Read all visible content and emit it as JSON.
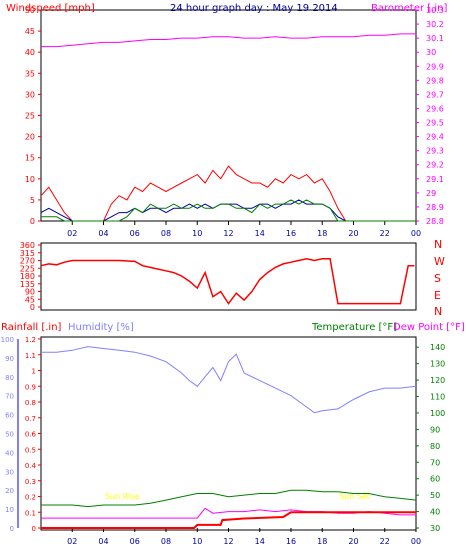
{
  "colors": {
    "background": "#ffffff",
    "frame": "#000000",
    "wind": "#ff0000",
    "gust_avg": "#0000a0",
    "wind_green": "#008000",
    "barometer": "#ff00ff",
    "direction": "#ff0000",
    "rain": "#ff0000",
    "humidity": "#8080ff",
    "temperature": "#008000",
    "dewpoint": "#ff00ff",
    "sun_label": "#ffff00",
    "title": "#0000a0"
  },
  "top_panel": {
    "title": "24 hour graph day : May 19 2014",
    "left_label": "Windspeed [mph]",
    "right_label": "Barometer [.in]"
  },
  "direction_panel": {
    "right_labels": [
      "N",
      "W",
      "S",
      "E",
      "N"
    ]
  },
  "bottom_panel": {
    "rain_label": "Rainfall [.in]",
    "humidity_label": "Humidity [%]",
    "temp_label": "Temperature [°F]",
    "dew_label": "Dew Point [°F]",
    "sunrise_label": "Sun Rise",
    "sunset_label": "Sun Set"
  },
  "chart_data": [
    {
      "type": "line",
      "title": "24 hour graph day : May 19 2014",
      "x_ticks": [
        "02",
        "04",
        "06",
        "08",
        "10",
        "12",
        "14",
        "16",
        "18",
        "20",
        "22",
        "00"
      ],
      "x_range_hours": [
        0,
        24
      ],
      "left_axis": {
        "label": "Windspeed [mph]",
        "range": [
          0,
          50
        ],
        "ticks": [
          0,
          5,
          10,
          15,
          20,
          25,
          30,
          35,
          40,
          45,
          50
        ]
      },
      "right_axis": {
        "label": "Barometer [.in]",
        "range": [
          28.8,
          30.3
        ],
        "ticks": [
          "28.8",
          "28.9",
          "29",
          "29.1",
          "29.2",
          "29.3",
          "29.4",
          "29.5",
          "29.6",
          "29.7",
          "29.8",
          "29.9",
          "30",
          "30.1",
          "30.2",
          "30.3"
        ]
      },
      "series": [
        {
          "axis": "right",
          "hours": [
            0,
            1,
            2,
            3,
            4,
            5,
            6,
            7,
            8,
            9,
            10,
            11,
            12,
            13,
            14,
            15,
            16,
            17,
            18,
            19,
            20,
            21,
            22,
            23,
            24
          ],
          "values": [
            30.04,
            30.04,
            30.05,
            30.06,
            30.07,
            30.07,
            30.08,
            30.09,
            30.09,
            30.1,
            30.1,
            30.11,
            30.11,
            30.1,
            30.1,
            30.11,
            30.1,
            30.1,
            30.11,
            30.11,
            30.11,
            30.12,
            30.12,
            30.13,
            30.13
          ]
        },
        {
          "axis": "left",
          "hours": [
            0,
            0.5,
            1,
            1.5,
            2,
            2.5,
            3,
            3.5,
            4,
            4.5,
            5,
            5.5,
            6,
            6.5,
            7,
            7.5,
            8,
            8.5,
            9,
            9.5,
            10,
            10.5,
            11,
            11.5,
            12,
            12.5,
            13,
            13.5,
            14,
            14.5,
            15,
            15.5,
            16,
            16.5,
            17,
            17.5,
            18,
            18.5,
            19,
            19.5,
            20,
            21,
            22,
            23,
            24
          ],
          "values": [
            6,
            8,
            5,
            2,
            0,
            0,
            0,
            0,
            0,
            4,
            6,
            5,
            8,
            7,
            9,
            8,
            7,
            8,
            9,
            10,
            11,
            9,
            12,
            10,
            13,
            11,
            10,
            9,
            9,
            8,
            10,
            9,
            11,
            10,
            11,
            9,
            10,
            7,
            3,
            0,
            0,
            0,
            0,
            0,
            0
          ]
        },
        {
          "axis": "left",
          "hours": [
            0,
            0.5,
            1,
            1.5,
            2,
            2.5,
            3,
            4,
            4.5,
            5,
            5.5,
            6,
            6.5,
            7,
            7.5,
            8,
            8.5,
            9,
            9.5,
            10,
            10.5,
            11,
            11.5,
            12,
            12.5,
            13,
            13.5,
            14,
            14.5,
            15,
            15.5,
            16,
            16.5,
            17,
            17.5,
            18,
            18.5,
            19,
            19.5,
            20,
            22,
            24
          ],
          "values": [
            2,
            3,
            2,
            1,
            0,
            0,
            0,
            0,
            1,
            2,
            2,
            3,
            2,
            3,
            3,
            2,
            3,
            3,
            4,
            3,
            4,
            3,
            4,
            4,
            4,
            3,
            3,
            4,
            4,
            3,
            4,
            4,
            5,
            4,
            4,
            4,
            3,
            1,
            0,
            0,
            0,
            0
          ]
        },
        {
          "axis": "left",
          "hours": [
            0,
            0.5,
            1,
            1.5,
            2,
            3,
            4,
            5,
            5.5,
            6,
            6.5,
            7,
            7.5,
            8,
            8.5,
            9,
            9.5,
            10,
            10.5,
            11,
            11.5,
            12,
            12.5,
            13,
            13.5,
            14,
            14.5,
            15,
            15.5,
            16,
            16.5,
            17,
            17.5,
            18,
            18.5,
            19,
            20,
            22,
            24
          ],
          "values": [
            1,
            1,
            1,
            0,
            0,
            0,
            0,
            0,
            1,
            3,
            2,
            4,
            3,
            3,
            4,
            3,
            3,
            4,
            3,
            3,
            4,
            4,
            3,
            3,
            2,
            4,
            3,
            4,
            4,
            5,
            4,
            5,
            4,
            4,
            3,
            0,
            0,
            0,
            0
          ]
        }
      ]
    },
    {
      "type": "line",
      "left_axis": {
        "range": [
          0,
          360
        ],
        "ticks": [
          0,
          45,
          90,
          135,
          180,
          225,
          270,
          315,
          360
        ]
      },
      "right_labels": [
        "N",
        "W",
        "S",
        "E",
        "N"
      ],
      "series": [
        {
          "hours": [
            0,
            0.5,
            1,
            1.5,
            2,
            3,
            4,
            5,
            6,
            6.5,
            7,
            7.5,
            8,
            8.5,
            9,
            9.5,
            10,
            10.5,
            11,
            11.5,
            12,
            12.5,
            13,
            13.5,
            14,
            14.5,
            15,
            15.5,
            16,
            16.5,
            17,
            17.5,
            18,
            18.5,
            19,
            19.5,
            20,
            21,
            22,
            23,
            23.5,
            23.9
          ],
          "values": [
            240,
            250,
            245,
            260,
            270,
            270,
            270,
            270,
            265,
            240,
            230,
            220,
            210,
            200,
            180,
            150,
            110,
            200,
            60,
            90,
            20,
            80,
            40,
            90,
            160,
            200,
            230,
            250,
            260,
            270,
            280,
            270,
            280,
            280,
            20,
            20,
            20,
            20,
            20,
            20,
            240,
            240
          ]
        }
      ]
    },
    {
      "type": "line",
      "x_ticks": [
        "02",
        "04",
        "06",
        "08",
        "10",
        "12",
        "14",
        "16",
        "18",
        "20",
        "22",
        "00"
      ],
      "x_range_hours": [
        0,
        24
      ],
      "rain_axis": {
        "label": "Rainfall [.in]",
        "range": [
          0,
          1.2
        ],
        "ticks": [
          "0",
          "0.1",
          "0.2",
          "0.3",
          "0.4",
          "0.5",
          "0.6",
          "0.7",
          "0.8",
          "0.9",
          "1",
          "1.1",
          "1.2"
        ]
      },
      "humidity_axis": {
        "label": "Humidity [%]",
        "range": [
          0,
          100
        ],
        "ticks": [
          0,
          10,
          20,
          30,
          40,
          50,
          60,
          70,
          80,
          90,
          100
        ]
      },
      "temp_axis": {
        "label": "Temperature [°F]",
        "range": [
          30,
          145
        ],
        "ticks": [
          30,
          40,
          50,
          60,
          70,
          80,
          90,
          100,
          110,
          120,
          130,
          140
        ]
      },
      "annotations": [
        "Sun Rise",
        "Sun Set"
      ],
      "series": [
        {
          "axis": "humidity",
          "hours": [
            0,
            1,
            2,
            3,
            4,
            5,
            6,
            7,
            8,
            9,
            9.5,
            10,
            10.5,
            11,
            11.5,
            12,
            12.5,
            13,
            14,
            15,
            16,
            17,
            17.5,
            18,
            19,
            20,
            21,
            22,
            23,
            24
          ],
          "values": [
            93,
            93,
            94,
            96,
            95,
            94,
            93,
            91,
            88,
            82,
            78,
            75,
            80,
            85,
            78,
            88,
            92,
            82,
            78,
            74,
            70,
            64,
            61,
            62,
            63,
            68,
            72,
            74,
            74,
            75
          ]
        },
        {
          "axis": "temp",
          "hours": [
            0,
            1,
            2,
            3,
            4,
            5,
            6,
            7,
            8,
            9,
            10,
            11,
            12,
            13,
            14,
            15,
            16,
            17,
            18,
            19,
            20,
            21,
            22,
            23,
            24
          ],
          "values": [
            44,
            44,
            44,
            43,
            44,
            44,
            44,
            45,
            47,
            49,
            51,
            51,
            49,
            50,
            51,
            51,
            53,
            53,
            52,
            52,
            51,
            51,
            49,
            48,
            47
          ]
        },
        {
          "axis": "temp",
          "hours": [
            0,
            1,
            2,
            3,
            4,
            5,
            6,
            7,
            8,
            9,
            10,
            10.5,
            11,
            12,
            13,
            14,
            15,
            16,
            17,
            18,
            19,
            20,
            21,
            22,
            23,
            24
          ],
          "values": [
            36,
            36,
            36,
            36,
            36,
            36,
            36,
            36,
            36,
            36,
            36,
            42,
            39,
            40,
            40,
            41,
            40,
            41,
            40,
            40,
            39,
            39,
            40,
            39,
            38,
            38
          ]
        },
        {
          "axis": "rain",
          "hours": [
            0,
            9,
            9.8,
            10,
            11.5,
            11.6,
            13,
            15.5,
            16,
            24
          ],
          "values": [
            0,
            0,
            0.0,
            0.02,
            0.02,
            0.05,
            0.06,
            0.07,
            0.1,
            0.1
          ]
        }
      ]
    }
  ]
}
